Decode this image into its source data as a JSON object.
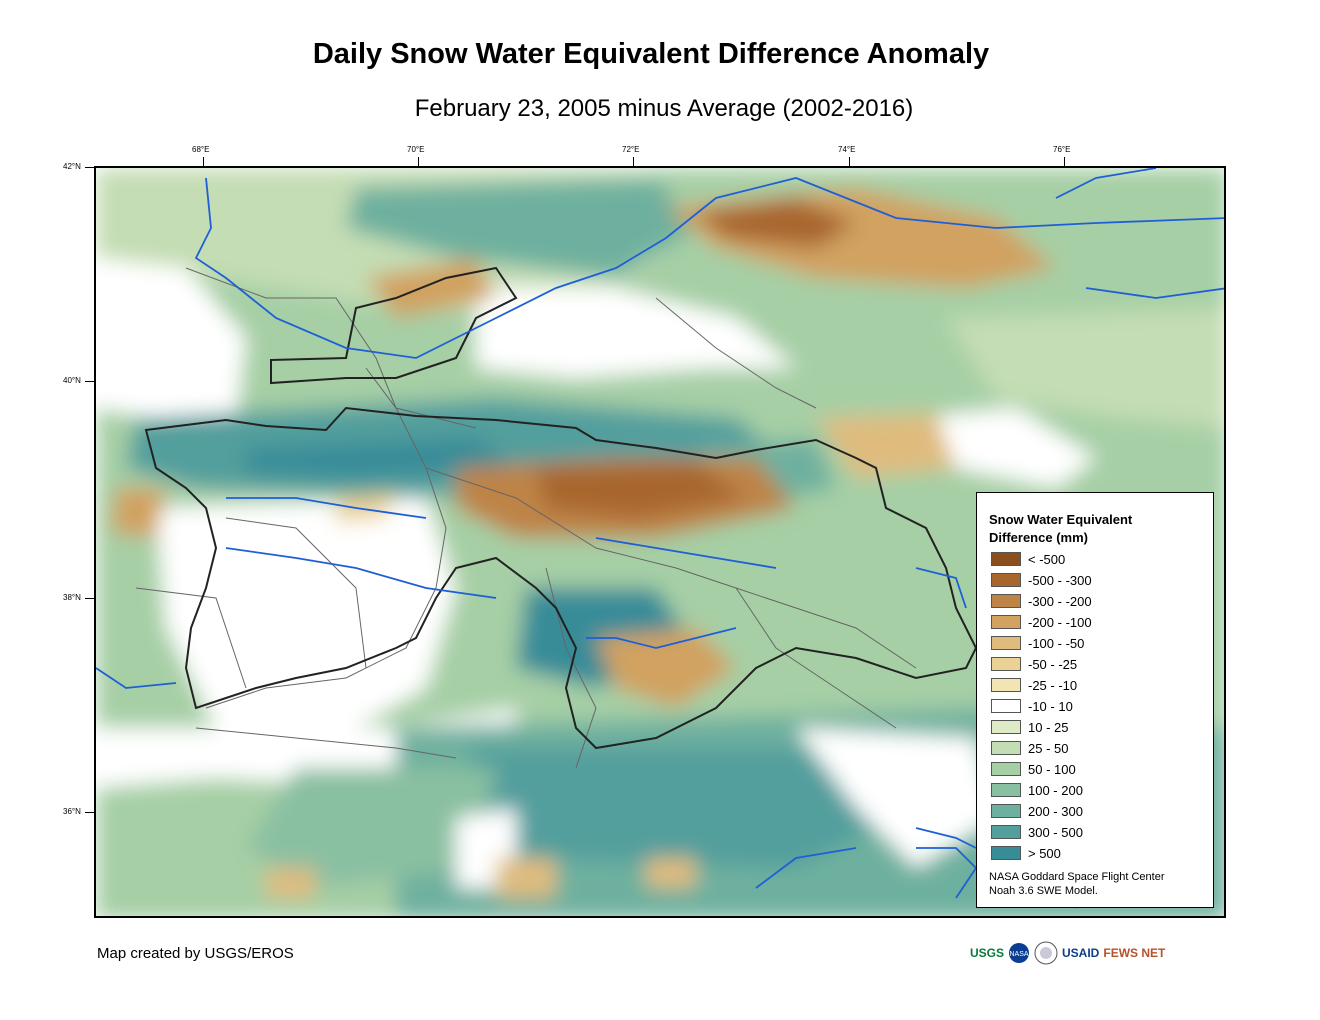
{
  "title": "Daily Snow Water Equivalent Difference Anomaly",
  "subtitle": "February 23, 2005 minus Average (2002-2016)",
  "longitude_labels": [
    "68°E",
    "70°E",
    "72°E",
    "74°E",
    "76°E"
  ],
  "latitude_labels": [
    "42°N",
    "40°N",
    "38°N",
    "36°N"
  ],
  "legend": {
    "title_line1": "Snow Water Equivalent",
    "title_line2": "Difference (mm)",
    "items": [
      {
        "label": "< -500",
        "color": "#8b4e1d"
      },
      {
        "label": "-500 - -300",
        "color": "#a8662f"
      },
      {
        "label": "-300 - -200",
        "color": "#be8447"
      },
      {
        "label": "-200 - -100",
        "color": "#d1a260"
      },
      {
        "label": "-100 - -50",
        "color": "#dfbc7e"
      },
      {
        "label": "-50 - -25",
        "color": "#ead196"
      },
      {
        "label": "-25 - -10",
        "color": "#f3e5b1"
      },
      {
        "label": "-10 - 10",
        "color": "#ffffff"
      },
      {
        "label": "10 - 25",
        "color": "#dfeac6"
      },
      {
        "label": "25 - 50",
        "color": "#c4ddb4"
      },
      {
        "label": "50 - 100",
        "color": "#a6cfa5"
      },
      {
        "label": "100 - 200",
        "color": "#8ac0a2"
      },
      {
        "label": "200 - 300",
        "color": "#6eb09f"
      },
      {
        "label": "300 - 500",
        "color": "#529f9d"
      },
      {
        "label": "> 500",
        "color": "#378c98"
      }
    ],
    "credit_line1": "NASA Goddard Space Flight Center",
    "credit_line2": "Noah 3.6 SWE Model."
  },
  "footer": "Map created by USGS/EROS",
  "logos": {
    "usgs": "USGS",
    "nasa": "NASA",
    "usaid": "USAID",
    "fewsnet": "FEWS NET"
  },
  "colors": {
    "river": "#1f5fd6",
    "country_border": "#222222",
    "basin_border": "#666666"
  }
}
